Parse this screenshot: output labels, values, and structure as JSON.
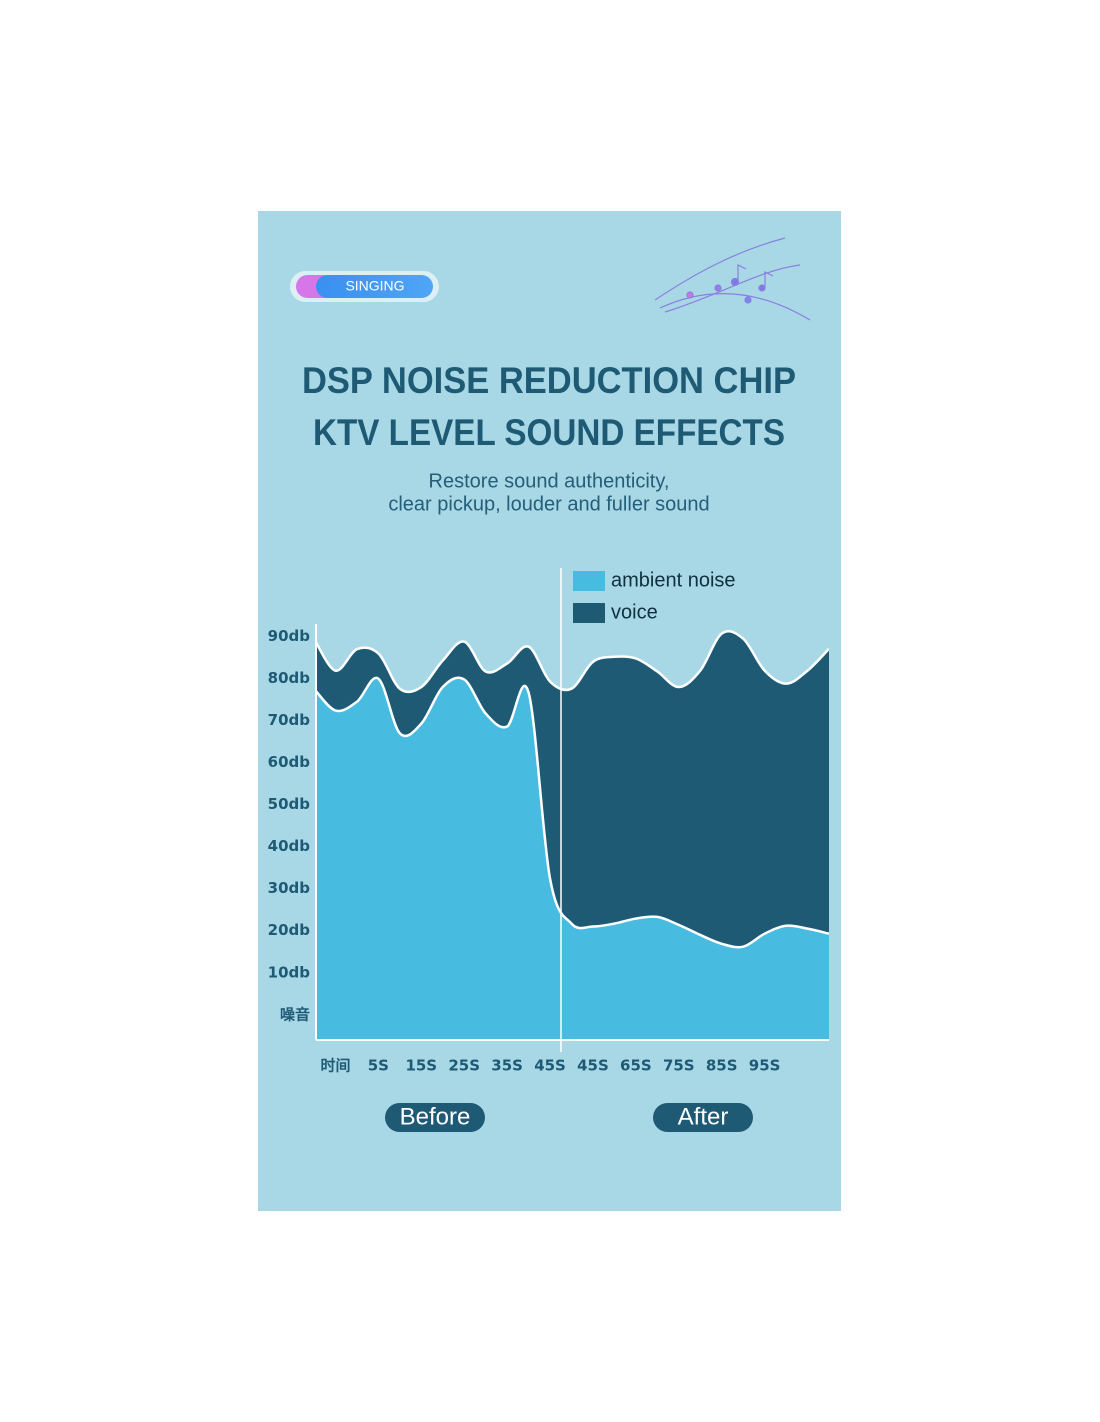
{
  "header": {
    "badge": "SINGING",
    "title_lines": [
      "DSP NOISE REDUCTION CHIP",
      "KTV LEVEL SOUND EFFECTS"
    ],
    "subtitle_lines": [
      "Restore sound authenticity,",
      "clear pickup, louder and fuller sound"
    ]
  },
  "chart_data": {
    "type": "area",
    "categories": [
      null,
      "时间",
      null,
      "5S",
      null,
      "15S",
      null,
      "25S",
      null,
      "35S",
      null,
      "45S",
      null,
      "45S",
      null,
      "65S",
      null,
      "75S",
      null,
      "85S",
      null,
      "95S",
      null,
      null,
      null
    ],
    "series": [
      {
        "name": "ambient noise",
        "color": "#47bbe0",
        "values": [
          77.6,
          72.4,
          74.5,
          80,
          67,
          69.3,
          78,
          79.8,
          71.7,
          68.6,
          76.7,
          32.4,
          21.7,
          21,
          21.7,
          22.9,
          23.3,
          21.4,
          19,
          16.9,
          16.2,
          19.3,
          21.2,
          20.5,
          19.3
        ]
      },
      {
        "name": "voice",
        "color": "#1f5a75",
        "values": [
          89.5,
          81.9,
          87,
          86,
          77.6,
          78,
          84.3,
          88.8,
          81.7,
          83.6,
          87.6,
          79.3,
          77.6,
          84,
          85.2,
          84.8,
          81.7,
          78,
          81.9,
          90.7,
          89.5,
          81.9,
          78.8,
          81.9,
          87.1
        ]
      }
    ],
    "ylim": [
      -6,
      93
    ],
    "yticks": [
      {
        "value": 0,
        "label": "噪音"
      },
      {
        "value": 10,
        "label": "10db"
      },
      {
        "value": 20,
        "label": "20db"
      },
      {
        "value": 30,
        "label": "30db"
      },
      {
        "value": 40,
        "label": "40db"
      },
      {
        "value": 50,
        "label": "50db"
      },
      {
        "value": 60,
        "label": "60db"
      },
      {
        "value": 70,
        "label": "70db"
      },
      {
        "value": 80,
        "label": "80db"
      },
      {
        "value": 90,
        "label": "90db"
      }
    ]
  },
  "footer": {
    "labels": [
      "Before",
      "After"
    ]
  }
}
